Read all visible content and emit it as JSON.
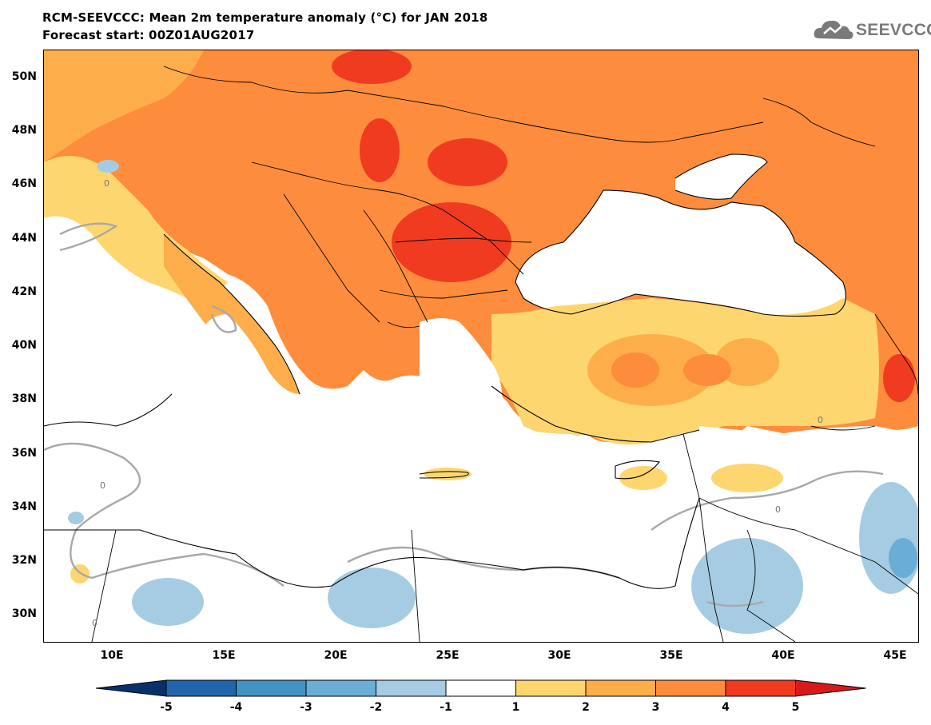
{
  "header": {
    "title_line1": "RCM-SEEVCCC: Mean 2m temperature anomaly (°C) for JAN 2018",
    "title_line2": "Forecast start: 00Z01AUG2017"
  },
  "logo": {
    "text": "SEEVCCC",
    "icon": "cloud-icon"
  },
  "map": {
    "lat_labels": [
      "50N",
      "48N",
      "46N",
      "44N",
      "42N",
      "40N",
      "38N",
      "36N",
      "34N",
      "32N",
      "30N"
    ],
    "lon_labels": [
      "10E",
      "15E",
      "20E",
      "25E",
      "30E",
      "35E",
      "40E",
      "45E"
    ],
    "contour_label": "0"
  },
  "colorbar": {
    "labels": [
      "-5",
      "-4",
      "-3",
      "-2",
      "-1",
      "1",
      "2",
      "3",
      "4",
      "5"
    ],
    "colors": [
      "#08306b",
      "#2166ac",
      "#4393c3",
      "#6aaed6",
      "#a6cce3",
      "#ffffff",
      "#fdd670",
      "#fdae4b",
      "#fd8d3c",
      "#f03b20",
      "#d7191c"
    ]
  }
}
